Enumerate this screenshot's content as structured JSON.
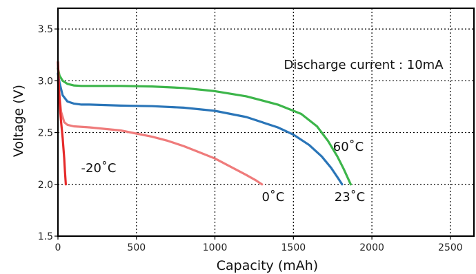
{
  "chart_data": {
    "type": "line",
    "title": "",
    "xlabel": "Capacity (mAh)",
    "ylabel": "Voltage (V)",
    "xlim": [
      0,
      2650
    ],
    "ylim": [
      1.5,
      3.7
    ],
    "xticks": [
      0,
      500,
      1000,
      1500,
      2000,
      2500
    ],
    "yticks": [
      1.5,
      2.0,
      2.5,
      3.0,
      3.5
    ],
    "xtick_labels": [
      "0",
      "500",
      "1000",
      "1500",
      "2000",
      "2500"
    ],
    "ytick_labels": [
      "1.5",
      "2.0",
      "2.5",
      "3.0",
      "3.5"
    ],
    "grid": true,
    "grid_style": "dotted",
    "annotation": "Discharge current : 10mA",
    "series": [
      {
        "name": "60˚C",
        "color": "#3cb54a",
        "x": [
          0,
          10,
          30,
          60,
          100,
          150,
          200,
          400,
          600,
          800,
          1000,
          1200,
          1400,
          1550,
          1650,
          1720,
          1780,
          1820,
          1850,
          1865
        ],
        "y": [
          3.12,
          3.05,
          3.0,
          2.97,
          2.955,
          2.95,
          2.95,
          2.95,
          2.945,
          2.93,
          2.9,
          2.85,
          2.77,
          2.68,
          2.56,
          2.42,
          2.27,
          2.15,
          2.05,
          2.0
        ]
      },
      {
        "name": "23˚C",
        "color": "#2a75b8",
        "x": [
          0,
          10,
          30,
          60,
          100,
          150,
          200,
          400,
          600,
          800,
          1000,
          1200,
          1400,
          1500,
          1600,
          1680,
          1740,
          1780,
          1810
        ],
        "y": [
          3.07,
          2.98,
          2.86,
          2.8,
          2.78,
          2.77,
          2.77,
          2.76,
          2.755,
          2.74,
          2.71,
          2.65,
          2.55,
          2.48,
          2.38,
          2.27,
          2.16,
          2.07,
          2.0
        ]
      },
      {
        "name": "0˚C",
        "color": "#ef7b7b",
        "x": [
          0,
          10,
          20,
          40,
          60,
          100,
          200,
          400,
          600,
          700,
          800,
          900,
          1000,
          1100,
          1200,
          1260,
          1300
        ],
        "y": [
          3.0,
          2.85,
          2.7,
          2.6,
          2.575,
          2.56,
          2.55,
          2.52,
          2.46,
          2.42,
          2.37,
          2.31,
          2.25,
          2.17,
          2.09,
          2.04,
          2.0
        ]
      },
      {
        "name": "-20˚C",
        "color": "#e52a2a",
        "x": [
          0,
          5,
          10,
          15,
          20,
          30,
          40,
          45,
          50
        ],
        "y": [
          3.18,
          3.0,
          2.82,
          2.7,
          2.6,
          2.45,
          2.25,
          2.12,
          2.0
        ]
      }
    ]
  }
}
